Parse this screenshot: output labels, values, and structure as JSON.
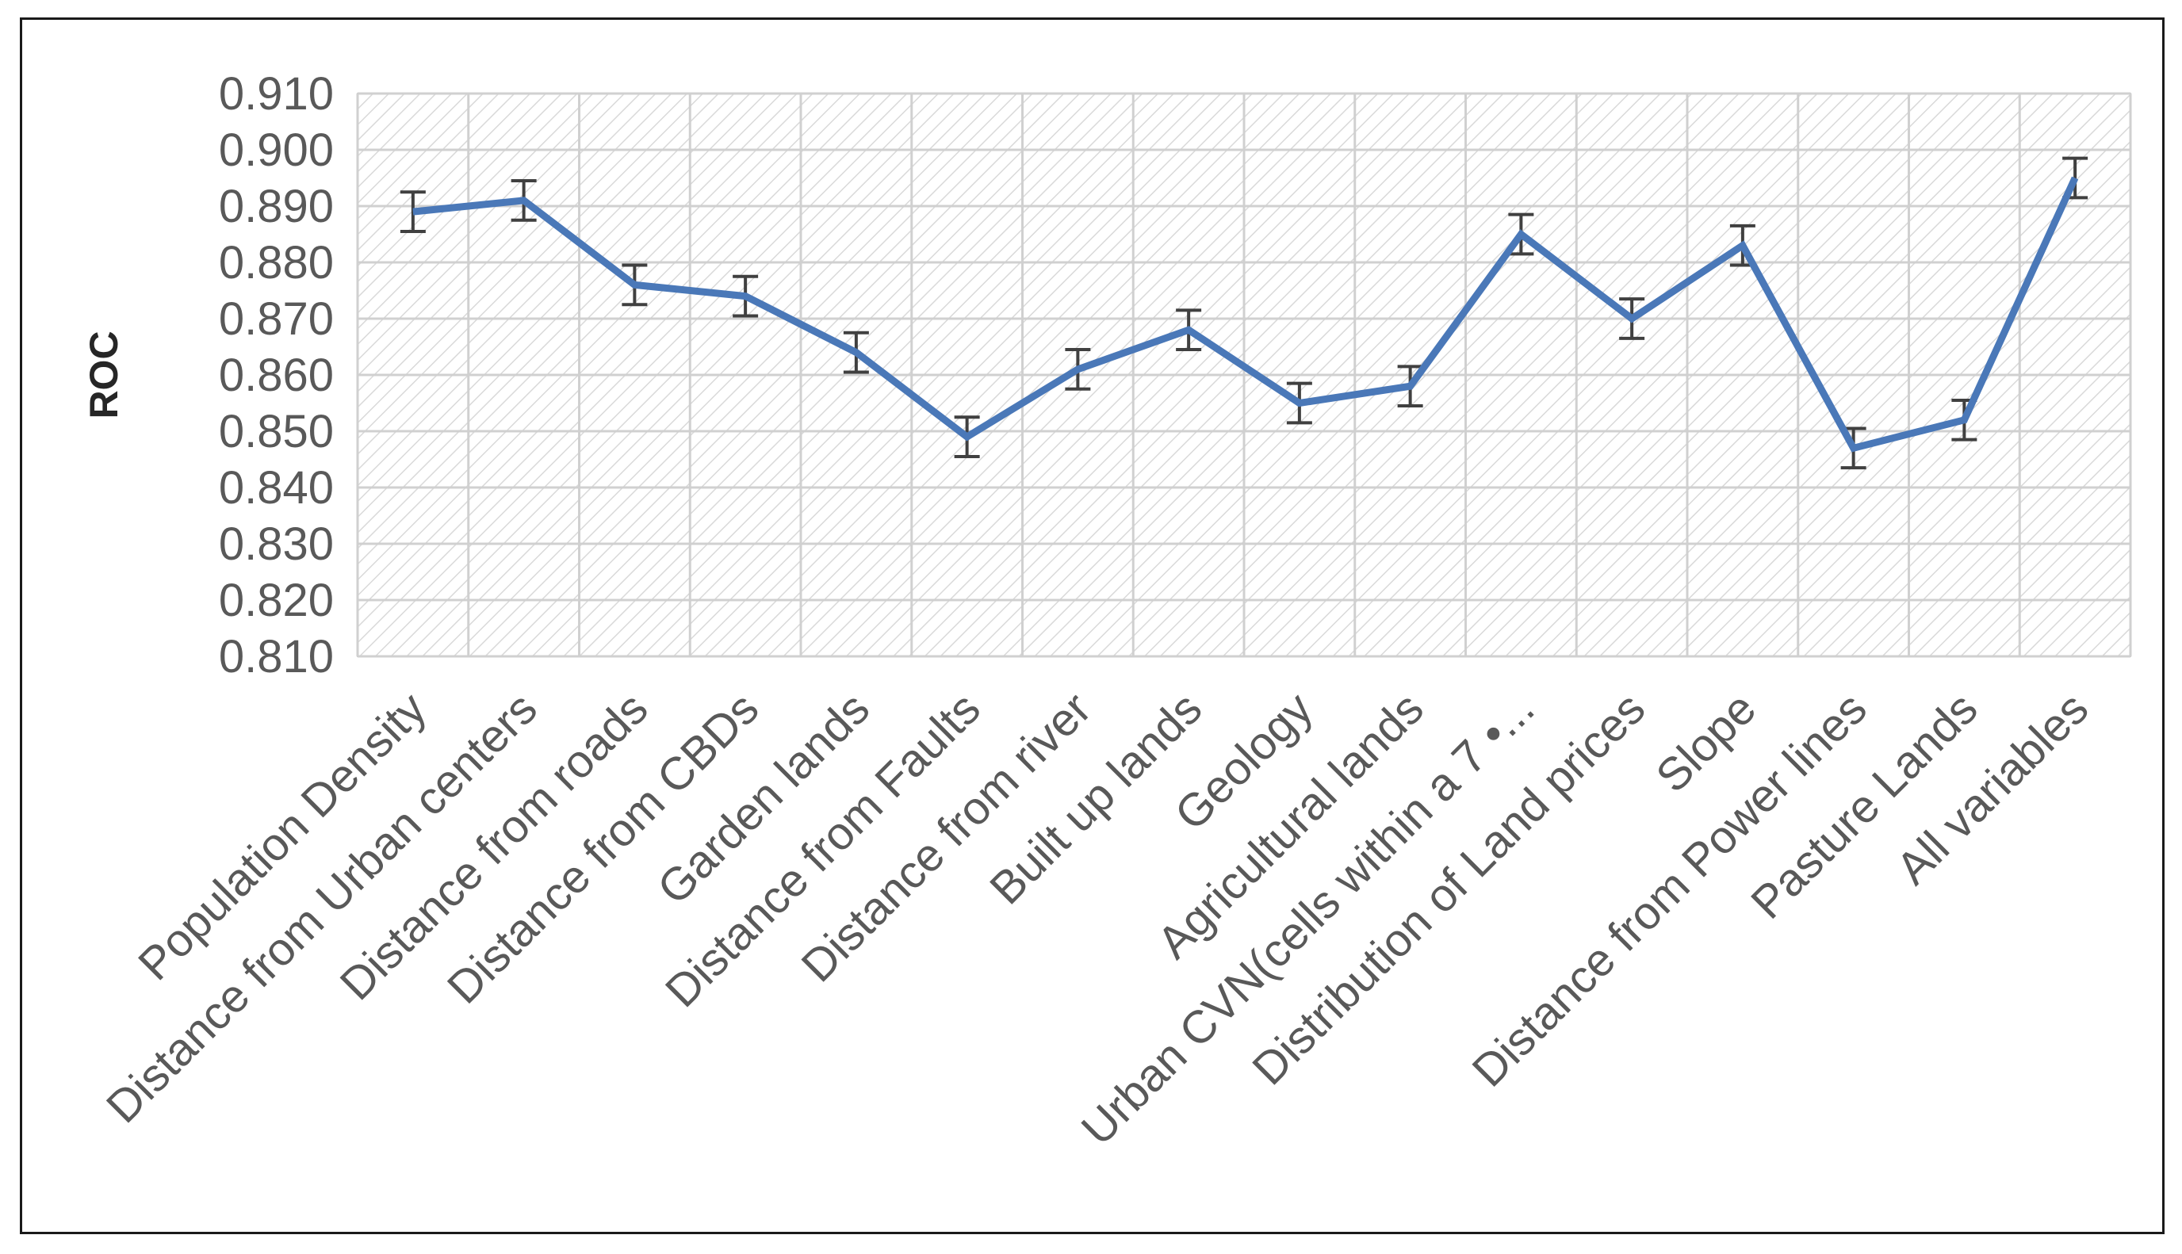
{
  "chart_data": {
    "type": "line",
    "title": "",
    "xlabel": "",
    "ylabel": "ROC",
    "ylim": [
      0.81,
      0.91
    ],
    "ytick_step": 0.01,
    "ytick_decimals": 3,
    "grid": true,
    "legend": "none",
    "categories": [
      "Population Density",
      "Distance from Urban centers",
      "Distance from roads",
      "Distance from CBDs",
      "Garden lands",
      "Distance from Faults",
      "Distance from river",
      "Built up lands",
      "Geology",
      "Agricultural lands",
      "Urban CVN(cells within a 7 •...",
      "Distribution of Land prices",
      "Slope",
      "Distance from Power lines",
      "Pasture Lands",
      "All variables"
    ],
    "series": [
      {
        "values": [
          0.889,
          0.891,
          0.876,
          0.874,
          0.864,
          0.849,
          0.861,
          0.868,
          0.855,
          0.858,
          0.885,
          0.87,
          0.883,
          0.847,
          0.852,
          0.895
        ],
        "error": [
          0.0035,
          0.0035,
          0.0035,
          0.0035,
          0.0035,
          0.0035,
          0.0035,
          0.0035,
          0.0035,
          0.0035,
          0.0035,
          0.0035,
          0.0035,
          0.0035,
          0.0035,
          0.0035
        ]
      }
    ],
    "colors": {
      "line": "#4a78b8",
      "error_bar": "#404040",
      "grid": "#d0d0d0",
      "plot_hatch": "#d9d9d9"
    }
  }
}
